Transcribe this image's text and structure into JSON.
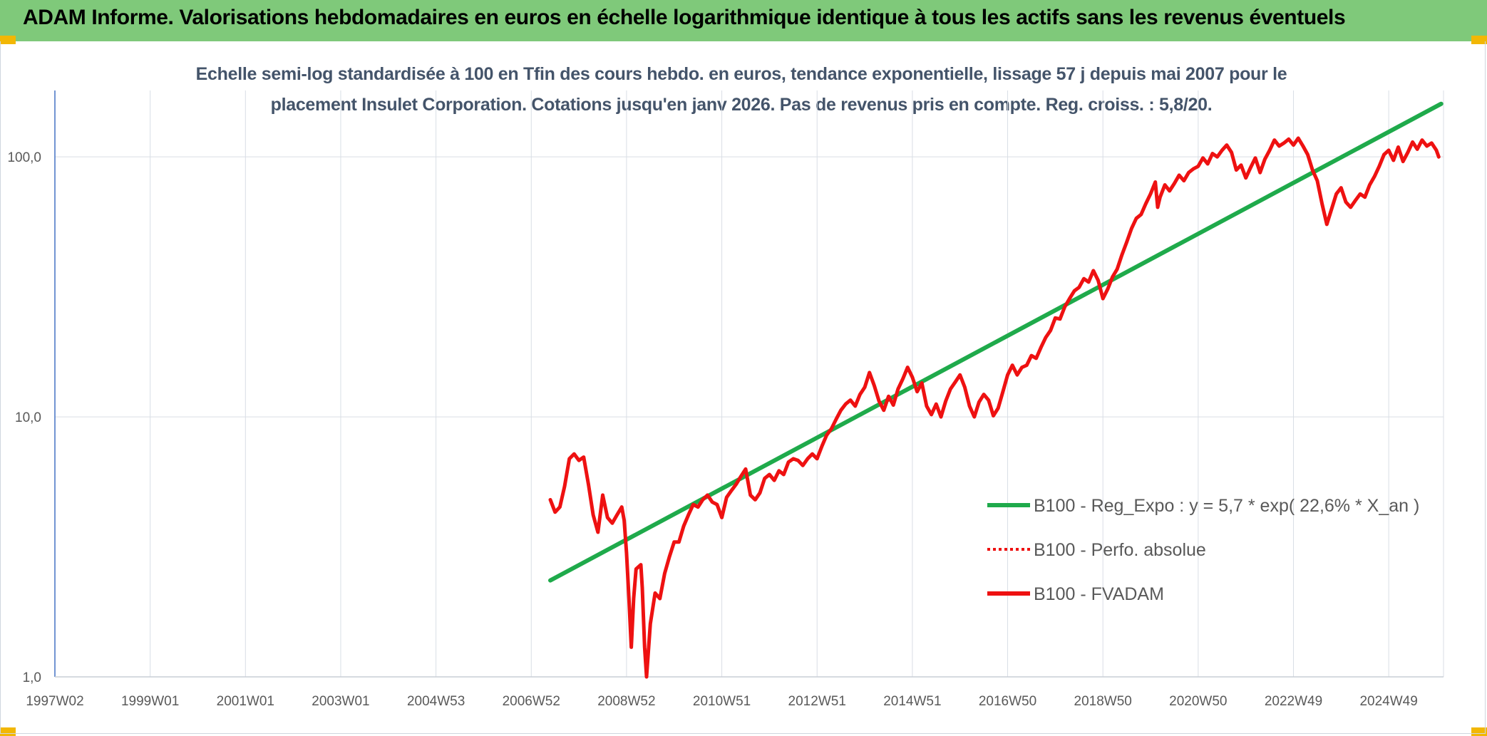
{
  "header": {
    "title": "ADAM Informe. Valorisations hebdomadaires en euros en échelle logarithmique identique à tous les actifs sans les revenus éventuels"
  },
  "chart_data": {
    "type": "line",
    "y_scale": "log",
    "ylim": [
      1,
      180
    ],
    "grid": true,
    "legend_position": "right",
    "title_lines": [
      "Echelle semi-log standardisée à 100 en Tfin des cours hebdo. en euros, tendance exponentielle, lissage 57 j depuis mai 2007 pour le",
      "placement Insulet Corporation.  Cotations jusqu'en janv 2026. Pas de revenus pris en compte. Reg. croiss. : 5,8/20."
    ],
    "y_ticks": [
      {
        "value": 1,
        "label": "1,0"
      },
      {
        "value": 10,
        "label": "10,0"
      },
      {
        "value": 100,
        "label": "100,0"
      }
    ],
    "x_ticks": [
      {
        "year": 1997.0,
        "label": "1997W02"
      },
      {
        "year": 1999.0,
        "label": "1999W01"
      },
      {
        "year": 2001.0,
        "label": "2001W01"
      },
      {
        "year": 2003.0,
        "label": "2003W01"
      },
      {
        "year": 2005.0,
        "label": "2004W53"
      },
      {
        "year": 2007.0,
        "label": "2006W52"
      },
      {
        "year": 2009.0,
        "label": "2008W52"
      },
      {
        "year": 2011.0,
        "label": "2010W51"
      },
      {
        "year": 2013.0,
        "label": "2012W51"
      },
      {
        "year": 2015.0,
        "label": "2014W51"
      },
      {
        "year": 2017.0,
        "label": "2016W50"
      },
      {
        "year": 2019.0,
        "label": "2018W50"
      },
      {
        "year": 2021.0,
        "label": "2020W50"
      },
      {
        "year": 2023.0,
        "label": "2022W49"
      },
      {
        "year": 2025.0,
        "label": "2024W49"
      }
    ],
    "series": [
      {
        "name": "B100 - Reg_Expo : y = 5,7 * exp( 22,6% *  X_an )",
        "color": "#1faa4b",
        "style": "solid",
        "points": [
          [
            2007.4,
            2.35
          ],
          [
            2026.1,
            160
          ]
        ]
      },
      {
        "name": "B100 - Perfo. absolue",
        "color": "#ee1111",
        "style": "dotted",
        "points": []
      },
      {
        "name": "B100 - FVADAM",
        "color": "#ee1111",
        "style": "solid",
        "points": [
          [
            2007.4,
            4.8
          ],
          [
            2007.5,
            4.3
          ],
          [
            2007.6,
            4.5
          ],
          [
            2007.7,
            5.4
          ],
          [
            2007.8,
            6.9
          ],
          [
            2007.9,
            7.2
          ],
          [
            2008.0,
            6.8
          ],
          [
            2008.1,
            7.0
          ],
          [
            2008.2,
            5.5
          ],
          [
            2008.3,
            4.2
          ],
          [
            2008.4,
            3.6
          ],
          [
            2008.5,
            5.0
          ],
          [
            2008.6,
            4.1
          ],
          [
            2008.7,
            3.9
          ],
          [
            2008.8,
            4.2
          ],
          [
            2008.9,
            4.5
          ],
          [
            2008.95,
            4.0
          ],
          [
            2009.0,
            3.0
          ],
          [
            2009.05,
            2.0
          ],
          [
            2009.1,
            1.3
          ],
          [
            2009.15,
            2.0
          ],
          [
            2009.2,
            2.6
          ],
          [
            2009.3,
            2.7
          ],
          [
            2009.33,
            2.2
          ],
          [
            2009.38,
            1.3
          ],
          [
            2009.42,
            1.0
          ],
          [
            2009.5,
            1.6
          ],
          [
            2009.6,
            2.1
          ],
          [
            2009.7,
            2.0
          ],
          [
            2009.8,
            2.5
          ],
          [
            2009.9,
            2.9
          ],
          [
            2010.0,
            3.3
          ],
          [
            2010.1,
            3.3
          ],
          [
            2010.2,
            3.8
          ],
          [
            2010.3,
            4.2
          ],
          [
            2010.4,
            4.6
          ],
          [
            2010.5,
            4.5
          ],
          [
            2010.6,
            4.8
          ],
          [
            2010.7,
            5.0
          ],
          [
            2010.8,
            4.7
          ],
          [
            2010.9,
            4.6
          ],
          [
            2011.0,
            4.1
          ],
          [
            2011.1,
            4.9
          ],
          [
            2011.2,
            5.2
          ],
          [
            2011.3,
            5.5
          ],
          [
            2011.4,
            5.9
          ],
          [
            2011.5,
            6.3
          ],
          [
            2011.6,
            5.0
          ],
          [
            2011.7,
            4.8
          ],
          [
            2011.8,
            5.1
          ],
          [
            2011.9,
            5.8
          ],
          [
            2012.0,
            6.0
          ],
          [
            2012.1,
            5.7
          ],
          [
            2012.2,
            6.2
          ],
          [
            2012.3,
            6.0
          ],
          [
            2012.4,
            6.7
          ],
          [
            2012.5,
            6.9
          ],
          [
            2012.6,
            6.8
          ],
          [
            2012.7,
            6.5
          ],
          [
            2012.8,
            6.9
          ],
          [
            2012.9,
            7.2
          ],
          [
            2013.0,
            6.9
          ],
          [
            2013.1,
            7.7
          ],
          [
            2013.2,
            8.5
          ],
          [
            2013.3,
            9.0
          ],
          [
            2013.4,
            9.8
          ],
          [
            2013.5,
            10.6
          ],
          [
            2013.6,
            11.2
          ],
          [
            2013.7,
            11.6
          ],
          [
            2013.8,
            11.0
          ],
          [
            2013.9,
            12.2
          ],
          [
            2014.0,
            13.0
          ],
          [
            2014.1,
            14.8
          ],
          [
            2014.2,
            13.2
          ],
          [
            2014.3,
            11.5
          ],
          [
            2014.4,
            10.6
          ],
          [
            2014.5,
            12.0
          ],
          [
            2014.6,
            11.1
          ],
          [
            2014.7,
            12.8
          ],
          [
            2014.8,
            14.0
          ],
          [
            2014.9,
            15.5
          ],
          [
            2015.0,
            14.2
          ],
          [
            2015.1,
            12.5
          ],
          [
            2015.2,
            13.5
          ],
          [
            2015.3,
            11.0
          ],
          [
            2015.4,
            10.2
          ],
          [
            2015.5,
            11.2
          ],
          [
            2015.6,
            10.0
          ],
          [
            2015.7,
            11.5
          ],
          [
            2015.8,
            12.8
          ],
          [
            2015.9,
            13.6
          ],
          [
            2016.0,
            14.5
          ],
          [
            2016.1,
            13.0
          ],
          [
            2016.2,
            11.0
          ],
          [
            2016.3,
            10.0
          ],
          [
            2016.4,
            11.4
          ],
          [
            2016.5,
            12.2
          ],
          [
            2016.6,
            11.6
          ],
          [
            2016.7,
            10.1
          ],
          [
            2016.8,
            10.8
          ],
          [
            2016.9,
            12.5
          ],
          [
            2017.0,
            14.5
          ],
          [
            2017.1,
            15.8
          ],
          [
            2017.2,
            14.5
          ],
          [
            2017.3,
            15.5
          ],
          [
            2017.4,
            15.8
          ],
          [
            2017.5,
            17.2
          ],
          [
            2017.6,
            16.8
          ],
          [
            2017.7,
            18.5
          ],
          [
            2017.8,
            20.2
          ],
          [
            2017.9,
            21.5
          ],
          [
            2018.0,
            24.0
          ],
          [
            2018.1,
            23.8
          ],
          [
            2018.2,
            26.5
          ],
          [
            2018.3,
            28.5
          ],
          [
            2018.4,
            30.5
          ],
          [
            2018.5,
            31.5
          ],
          [
            2018.6,
            34.0
          ],
          [
            2018.7,
            33.0
          ],
          [
            2018.8,
            36.5
          ],
          [
            2018.9,
            33.5
          ],
          [
            2019.0,
            28.5
          ],
          [
            2019.1,
            31.0
          ],
          [
            2019.2,
            34.5
          ],
          [
            2019.3,
            37.0
          ],
          [
            2019.4,
            42.0
          ],
          [
            2019.5,
            47.0
          ],
          [
            2019.6,
            53.0
          ],
          [
            2019.7,
            58.0
          ],
          [
            2019.8,
            60.0
          ],
          [
            2019.9,
            66.0
          ],
          [
            2020.0,
            72.0
          ],
          [
            2020.1,
            80.0
          ],
          [
            2020.15,
            64.0
          ],
          [
            2020.2,
            70.0
          ],
          [
            2020.3,
            78.0
          ],
          [
            2020.4,
            74.0
          ],
          [
            2020.5,
            79.0
          ],
          [
            2020.6,
            85.0
          ],
          [
            2020.7,
            81.0
          ],
          [
            2020.8,
            87.0
          ],
          [
            2020.9,
            90.0
          ],
          [
            2021.0,
            92.0
          ],
          [
            2021.1,
            99.0
          ],
          [
            2021.2,
            94.0
          ],
          [
            2021.3,
            103.0
          ],
          [
            2021.4,
            100.0
          ],
          [
            2021.5,
            106.0
          ],
          [
            2021.6,
            111.0
          ],
          [
            2021.7,
            104.0
          ],
          [
            2021.8,
            89.0
          ],
          [
            2021.9,
            93.0
          ],
          [
            2022.0,
            83.0
          ],
          [
            2022.1,
            91.0
          ],
          [
            2022.2,
            99.0
          ],
          [
            2022.3,
            87.0
          ],
          [
            2022.4,
            98.0
          ],
          [
            2022.5,
            106.0
          ],
          [
            2022.6,
            116.0
          ],
          [
            2022.7,
            110.0
          ],
          [
            2022.8,
            113.0
          ],
          [
            2022.9,
            117.0
          ],
          [
            2023.0,
            111.0
          ],
          [
            2023.1,
            118.0
          ],
          [
            2023.2,
            110.0
          ],
          [
            2023.3,
            102.0
          ],
          [
            2023.4,
            89.0
          ],
          [
            2023.5,
            81.0
          ],
          [
            2023.6,
            66.0
          ],
          [
            2023.7,
            55.0
          ],
          [
            2023.8,
            63.0
          ],
          [
            2023.9,
            72.0
          ],
          [
            2024.0,
            76.0
          ],
          [
            2024.1,
            67.0
          ],
          [
            2024.2,
            64.0
          ],
          [
            2024.3,
            68.0
          ],
          [
            2024.4,
            72.0
          ],
          [
            2024.5,
            70.0
          ],
          [
            2024.6,
            78.0
          ],
          [
            2024.7,
            84.0
          ],
          [
            2024.8,
            92.0
          ],
          [
            2024.9,
            102.0
          ],
          [
            2025.0,
            106.0
          ],
          [
            2025.1,
            97.0
          ],
          [
            2025.2,
            109.0
          ],
          [
            2025.3,
            96.0
          ],
          [
            2025.4,
            104.0
          ],
          [
            2025.5,
            114.0
          ],
          [
            2025.6,
            107.0
          ],
          [
            2025.7,
            116.0
          ],
          [
            2025.8,
            110.0
          ],
          [
            2025.9,
            113.0
          ],
          [
            2026.0,
            106.0
          ],
          [
            2026.05,
            100.0
          ]
        ]
      }
    ]
  }
}
